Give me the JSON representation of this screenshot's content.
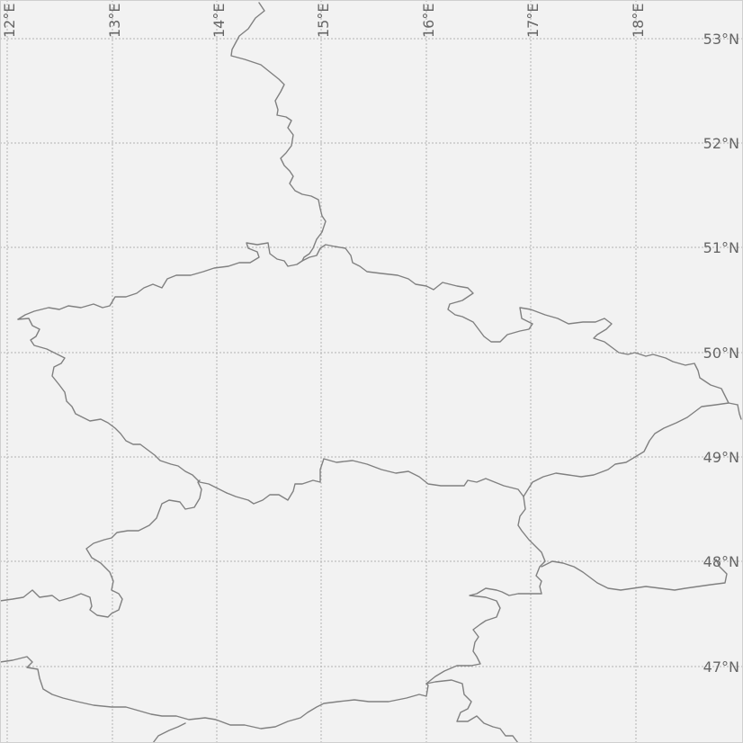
{
  "map": {
    "lon_labels": [
      "12°E",
      "13°E",
      "14°E",
      "15°E",
      "16°E",
      "17°E",
      "18°E"
    ],
    "lat_labels": [
      "53°N",
      "52°N",
      "51°N",
      "50°N",
      "49°N",
      "48°N",
      "47°N"
    ],
    "graticule": "dashed",
    "colors": {
      "background": "#f2f2f2",
      "border": "#808080",
      "grid": "#b3b3b3",
      "label": "#666666"
    }
  }
}
